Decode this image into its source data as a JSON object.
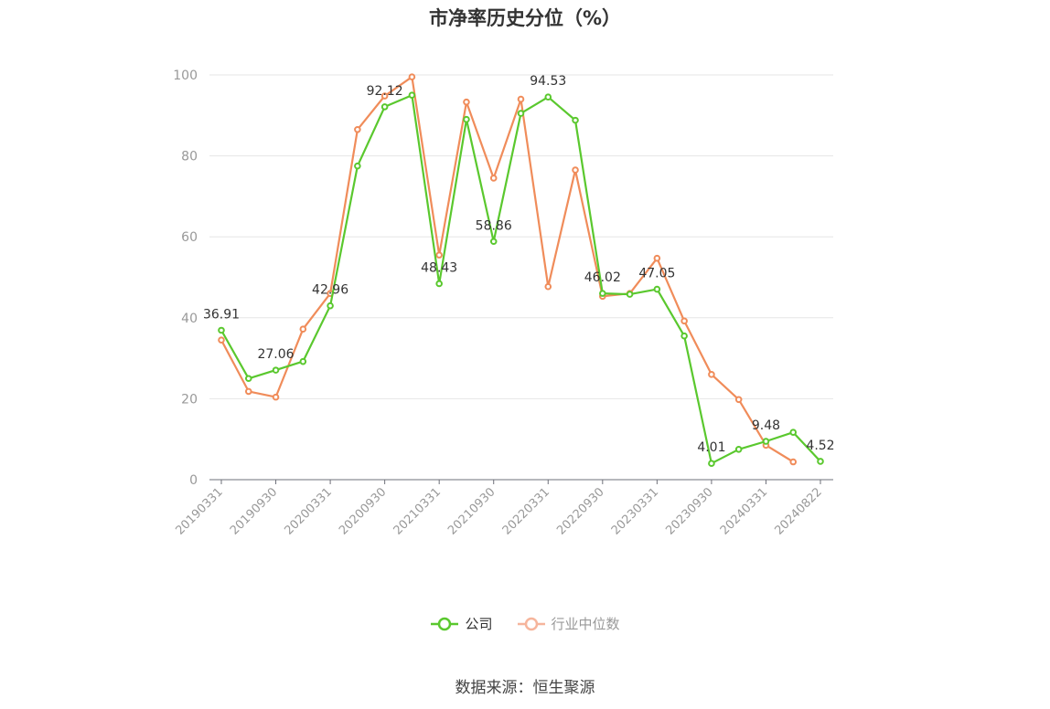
{
  "title": "市净率历史分位（%）",
  "source": "数据来源：恒生聚源",
  "colors": {
    "company": "#5ac82e",
    "industry": "#f08c5a",
    "industry_legend": "#f6b59c",
    "grid": "#e6e6e6",
    "axis": "#6e7079"
  },
  "chart_data": {
    "type": "line",
    "title": "市净率历史分位（%）",
    "ylim": [
      0,
      100
    ],
    "yticks": [
      0,
      20,
      40,
      60,
      80,
      100
    ],
    "grid": true,
    "legend_position": "bottom",
    "x": [
      "20190331",
      "20190630",
      "20190930",
      "20191231",
      "20200331",
      "20200630",
      "20200930",
      "20201231",
      "20210331",
      "20210630",
      "20210930",
      "20211231",
      "20220331",
      "20220630",
      "20220930",
      "20221231",
      "20230331",
      "20230630",
      "20230930",
      "20231231",
      "20240331",
      "20240630",
      "20240822"
    ],
    "xtick_labels": [
      "20190331",
      "20190930",
      "20200331",
      "20200930",
      "20210331",
      "20210930",
      "20220331",
      "20220930",
      "20230331",
      "20230930",
      "20240331",
      "20240822"
    ],
    "series": [
      {
        "name": "公司",
        "values": [
          36.91,
          25.0,
          27.06,
          29.2,
          42.96,
          77.5,
          92.12,
          95.0,
          48.43,
          89.0,
          58.86,
          90.5,
          94.53,
          88.8,
          46.02,
          45.8,
          47.05,
          35.5,
          4.01,
          7.5,
          9.48,
          11.7,
          4.52
        ]
      },
      {
        "name": "行业中位数",
        "values": [
          34.5,
          21.8,
          20.4,
          37.2,
          46.0,
          86.5,
          94.8,
          99.5,
          55.5,
          93.3,
          74.5,
          94.0,
          47.7,
          76.5,
          45.3,
          46.0,
          54.7,
          39.2,
          26.0,
          19.8,
          8.5,
          4.4,
          null
        ]
      }
    ],
    "data_labels": [
      {
        "index": 0,
        "text": "36.91"
      },
      {
        "index": 2,
        "text": "27.06"
      },
      {
        "index": 4,
        "text": "42.96"
      },
      {
        "index": 6,
        "text": "92.12"
      },
      {
        "index": 8,
        "text": "48.43"
      },
      {
        "index": 10,
        "text": "58.86"
      },
      {
        "index": 12,
        "text": "94.53"
      },
      {
        "index": 14,
        "text": "46.02"
      },
      {
        "index": 16,
        "text": "47.05"
      },
      {
        "index": 18,
        "text": "4.01"
      },
      {
        "index": 20,
        "text": "9.48"
      },
      {
        "index": 22,
        "text": "4.52"
      }
    ]
  }
}
